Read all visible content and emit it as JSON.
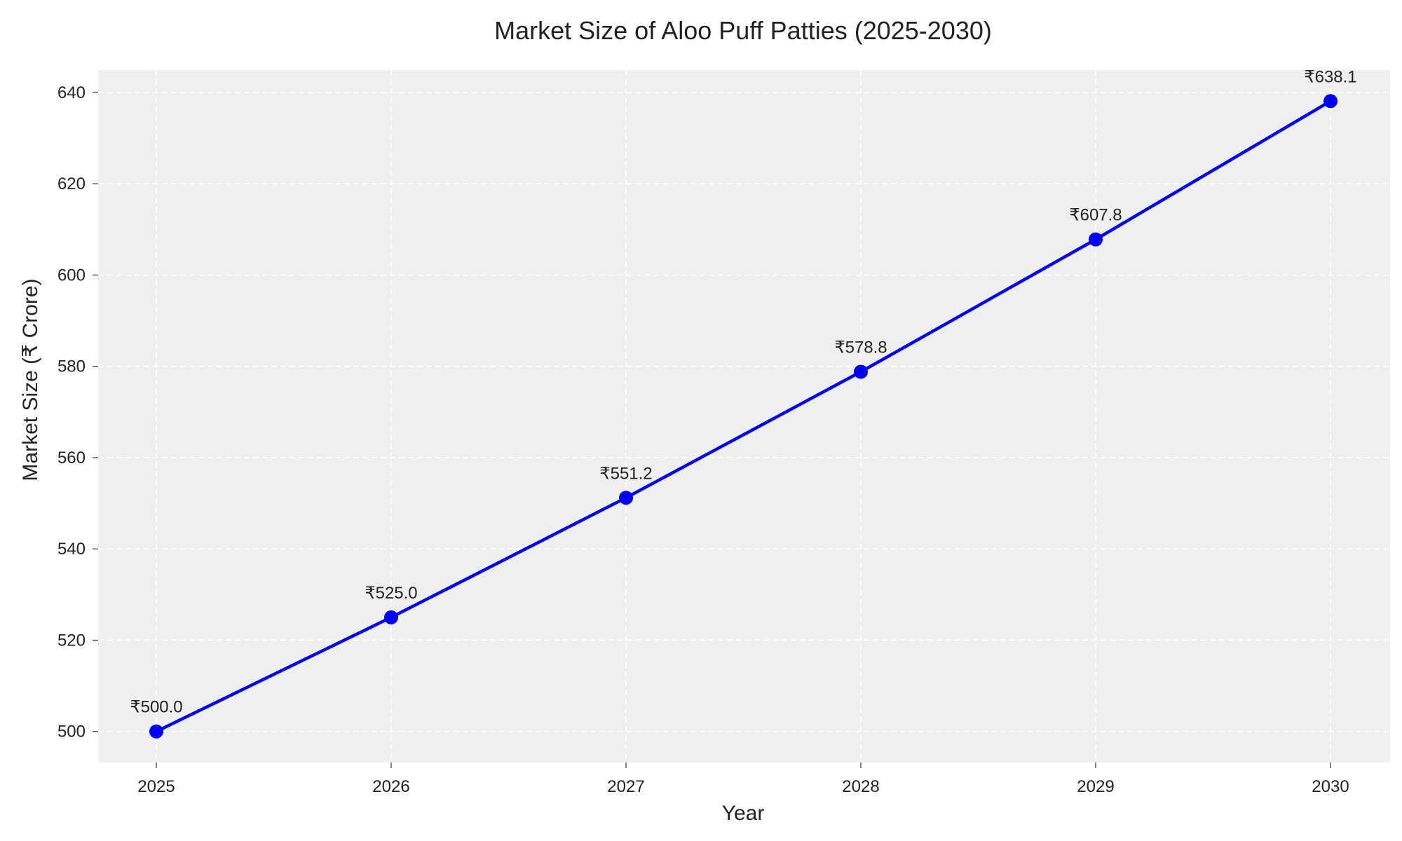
{
  "colors": {
    "series": "#0000ee",
    "plot_background": "#efefef",
    "grid": "#ffffff"
  },
  "chart_data": {
    "type": "line",
    "title": "Market Size of Aloo Puff Patties (2025-2030)",
    "xlabel": "Year",
    "ylabel": "Market Size (₹ Crore)",
    "x": [
      "2025",
      "2026",
      "2027",
      "2028",
      "2029",
      "2030"
    ],
    "series": [
      {
        "values": [
          500.0,
          525.0,
          551.2,
          578.8,
          607.8,
          638.1
        ]
      }
    ],
    "data_labels": [
      "₹500.0",
      "₹525.0",
      "₹551.2",
      "₹578.8",
      "₹607.8",
      "₹638.1"
    ],
    "y_ticks": [
      500,
      520,
      540,
      560,
      580,
      600,
      620,
      640
    ],
    "ylim": [
      493.2,
      644.9
    ],
    "grid": true,
    "marker": "circle"
  }
}
